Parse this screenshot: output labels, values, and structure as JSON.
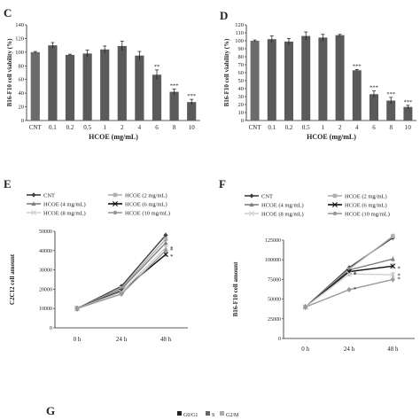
{
  "panels": {
    "C": "C",
    "D": "D",
    "E": "E",
    "F": "F",
    "G": "G",
    "g_legend": [
      "G0/G1",
      "S",
      "G2/M"
    ]
  },
  "chart_data": [
    {
      "id": "C",
      "type": "bar",
      "categories": [
        "CNT",
        "0.1",
        "0.2",
        "0.5",
        "1",
        "2",
        "4",
        "6",
        "8",
        "10"
      ],
      "values": [
        100,
        110,
        96,
        98,
        104,
        109,
        95,
        67,
        42,
        27
      ],
      "errors": [
        1,
        4,
        1,
        5,
        5,
        7,
        6,
        7,
        4,
        4
      ],
      "sig": [
        "",
        "",
        "",
        "",
        "",
        "",
        "",
        "**",
        "***",
        "***"
      ],
      "ylabel": "B16-F10 cell viability (%)",
      "xlabel": "HCOE (mg/mL)",
      "ylim": [
        0,
        140
      ],
      "yticks": [
        "0",
        "20",
        "40",
        "60",
        "80",
        "100",
        "120",
        "140"
      ]
    },
    {
      "id": "D",
      "type": "bar",
      "categories": [
        "CNT",
        "0.1",
        "0.2",
        "0.5",
        "1",
        "2",
        "4",
        "6",
        "8",
        "10"
      ],
      "values": [
        100,
        102,
        99,
        106,
        104,
        107,
        63,
        33,
        25,
        17
      ],
      "errors": [
        1,
        4,
        4,
        5,
        4,
        1,
        1,
        4,
        4,
        2
      ],
      "sig": [
        "",
        "",
        "",
        "",
        "",
        "",
        "***",
        "***",
        "***",
        "***"
      ],
      "ylabel": "B16-F10 cell viability (%)",
      "xlabel": "HCOE (mg/mL)",
      "ylim": [
        0,
        120
      ],
      "yticks": [
        "0",
        "10",
        "20",
        "30",
        "40",
        "50",
        "60",
        "70",
        "80",
        "90",
        "100",
        "110",
        "120"
      ]
    },
    {
      "id": "E",
      "type": "line",
      "x": [
        "0 h",
        "24 h",
        "48 h"
      ],
      "ylabel": "C2C12 cell amount",
      "ylim": [
        0,
        50000
      ],
      "yticks": [
        "0",
        "10000",
        "20000",
        "30000",
        "40000",
        "50000"
      ],
      "legend": [
        "CNT",
        "HCOE (2 mg/mL)",
        "HCOE (4 mg/mL)",
        "HCOE (6 mg/mL)",
        "HCOE (8 mg/mL)",
        "HCOE (10 mg/mL)"
      ],
      "series": [
        {
          "name": "CNT",
          "values": [
            10000,
            21500,
            48000
          ],
          "color": "#404040",
          "marker": "diamond"
        },
        {
          "name": "HCOE (2 mg/mL)",
          "values": [
            10000,
            20500,
            46000
          ],
          "color": "#b0b0b0",
          "marker": "square"
        },
        {
          "name": "HCOE (4 mg/mL)",
          "values": [
            10000,
            20000,
            44000
          ],
          "color": "#808080",
          "marker": "triangle"
        },
        {
          "name": "HCOE (6 mg/mL)",
          "values": [
            10000,
            19000,
            38000
          ],
          "color": "#111111",
          "marker": "x"
        },
        {
          "name": "HCOE (8 mg/mL)",
          "values": [
            10000,
            18500,
            41500
          ],
          "color": "#d0d0d0",
          "marker": "x"
        },
        {
          "name": "HCOE (10 mg/mL)",
          "values": [
            10000,
            17500,
            40000
          ],
          "color": "#9a9a9a",
          "marker": "circle"
        }
      ],
      "annotations": [
        "*",
        "*",
        "*"
      ]
    },
    {
      "id": "F",
      "type": "line",
      "x": [
        "0 h",
        "24 h",
        "48 h"
      ],
      "ylabel": "B16-F10 cell amount",
      "ylim": [
        0,
        125000
      ],
      "yticks": [
        "0",
        "25000",
        "50000",
        "75000",
        "100000",
        "125000"
      ],
      "legend": [
        "CNT",
        "HCOE (2 mg/mL)",
        "HCOE (4 mg/mL)",
        "HCOE (6 mg/mL)",
        "HCOE (8 mg/mL)",
        "HCOE (10 mg/mL)"
      ],
      "series": [
        {
          "name": "CNT",
          "values": [
            40000,
            90000,
            128000
          ],
          "color": "#404040",
          "marker": "diamond"
        },
        {
          "name": "HCOE (2 mg/mL)",
          "values": [
            40000,
            88000,
            130000
          ],
          "color": "#b0b0b0",
          "marker": "square"
        },
        {
          "name": "HCOE (4 mg/mL)",
          "values": [
            40000,
            87000,
            101000
          ],
          "color": "#808080",
          "marker": "triangle"
        },
        {
          "name": "HCOE (6 mg/mL)",
          "values": [
            40000,
            85000,
            92000
          ],
          "color": "#111111",
          "marker": "x"
        },
        {
          "name": "HCOE (8 mg/mL)",
          "values": [
            40000,
            82000,
            81000
          ],
          "color": "#d0d0d0",
          "marker": "x"
        },
        {
          "name": "HCOE (10 mg/mL)",
          "values": [
            40000,
            62000,
            75000
          ],
          "color": "#9a9a9a",
          "marker": "circle"
        }
      ],
      "annotations": [
        "*",
        "*",
        "*",
        "*",
        "*",
        "*"
      ]
    }
  ]
}
